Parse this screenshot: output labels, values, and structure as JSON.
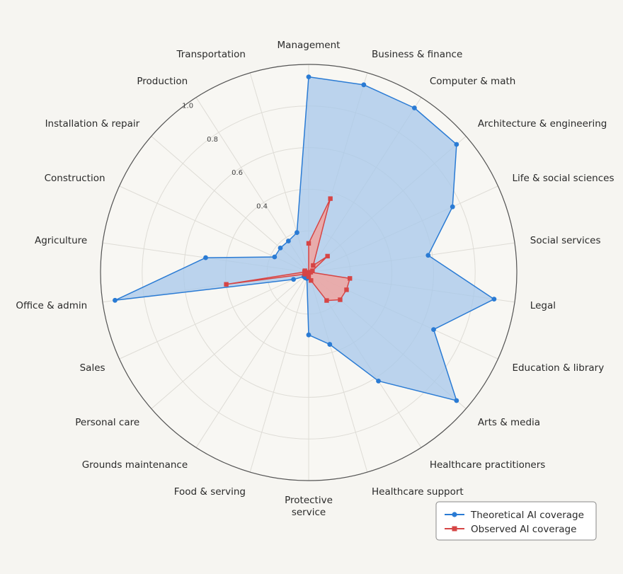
{
  "chart_data": {
    "type": "radar",
    "title": "",
    "categories": [
      "Management",
      "Business & finance",
      "Computer & math",
      "Architecture & engineering",
      "Life & social sciences",
      "Social services",
      "Legal",
      "Education & library",
      "Arts & media",
      "Healthcare practitioners",
      "Healthcare support",
      "Protective service",
      "Food & serving",
      "Grounds maintenance",
      "Personal care",
      "Sales",
      "Office & admin",
      "Agriculture",
      "Construction",
      "Installation & repair",
      "Production",
      "Transportation"
    ],
    "category_label_lines": [
      [
        "Management"
      ],
      [
        "Business & finance"
      ],
      [
        "Computer & math"
      ],
      [
        "Architecture & engineering"
      ],
      [
        "Life & social sciences"
      ],
      [
        "Social services"
      ],
      [
        "Legal"
      ],
      [
        "Education & library"
      ],
      [
        "Arts & media"
      ],
      [
        "Healthcare practitioners"
      ],
      [
        "Healthcare support"
      ],
      [
        "Protective",
        "service"
      ],
      [
        "Food & serving"
      ],
      [
        "Grounds maintenance"
      ],
      [
        "Personal care"
      ],
      [
        "Sales"
      ],
      [
        "Office & admin"
      ],
      [
        "Agriculture"
      ],
      [
        "Construction"
      ],
      [
        "Installation & repair"
      ],
      [
        "Production"
      ],
      [
        "Transportation"
      ]
    ],
    "radial_ticks": [
      0.4,
      0.6,
      0.8,
      1.0
    ],
    "radial_tick_labels": [
      "0.4",
      "0.6",
      "0.8",
      "1.0"
    ],
    "rlim": [
      0.0,
      1.0
    ],
    "grid": true,
    "legend": "bottom-right",
    "series": [
      {
        "name": "Theoretical AI coverage",
        "color": "#2a7bd4",
        "fill": "#a9c9ea",
        "marker": "circle",
        "values": [
          0.94,
          0.94,
          0.94,
          0.94,
          0.76,
          0.58,
          0.9,
          0.66,
          0.94,
          0.62,
          0.36,
          0.3,
          0.03,
          0.03,
          0.03,
          0.08,
          0.94,
          0.5,
          0.18,
          0.18,
          0.18,
          0.2
        ]
      },
      {
        "name": "Observed AI coverage",
        "color": "#d64545",
        "fill": "#f0a4a0",
        "marker": "square",
        "values": [
          0.14,
          0.37,
          0.04,
          0.12,
          0.02,
          0.01,
          0.2,
          0.2,
          0.2,
          0.16,
          0.04,
          0.02,
          0.0,
          0.0,
          0.0,
          0.02,
          0.4,
          0.02,
          0.02,
          0.0,
          0.0,
          0.0
        ]
      }
    ]
  }
}
